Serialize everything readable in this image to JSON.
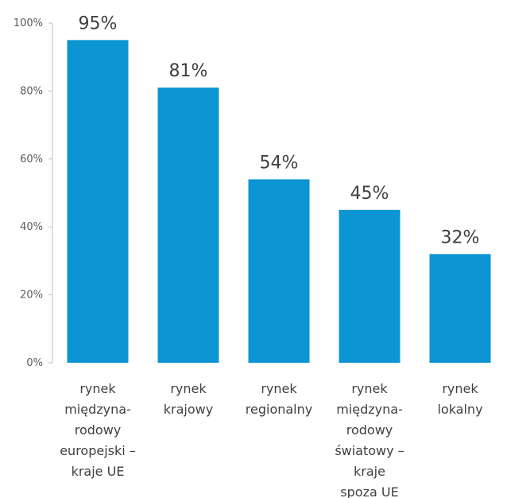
{
  "chart_data": {
    "type": "bar",
    "categories": [
      [
        "rynek",
        "międzyna-",
        "rodowy",
        "europejski –",
        "kraje UE"
      ],
      [
        "rynek",
        "krajowy"
      ],
      [
        "rynek",
        "regionalny"
      ],
      [
        "rynek",
        "międzyna-",
        "rodowy",
        "światowy –",
        "kraje",
        "spoza UE"
      ],
      [
        "rynek",
        "lokalny"
      ]
    ],
    "values": [
      95,
      81,
      54,
      45,
      32
    ],
    "data_labels": [
      "95%",
      "81%",
      "54%",
      "45%",
      "32%"
    ],
    "yticks": [
      "0%",
      "20%",
      "40%",
      "60%",
      "80%",
      "100%"
    ],
    "ylim": [
      0,
      100
    ],
    "grid": false,
    "bar_color": "#0C95D3",
    "axis_color": "#BFBFBF"
  }
}
